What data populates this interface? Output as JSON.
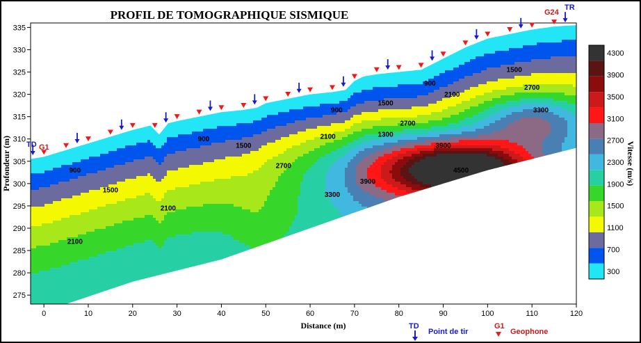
{
  "chart_data": {
    "type": "heatmap",
    "title": "PROFIL DE TOMOGRAPHIQUE SISMIQUE",
    "xlabel": "Distance (m)",
    "ylabel": "Profondeur (m)",
    "colorbar_label": "Vitesse (m/s)",
    "xlim": [
      -3,
      120
    ],
    "ylim": [
      273,
      336
    ],
    "xticks": [
      0,
      10,
      20,
      30,
      40,
      50,
      60,
      70,
      80,
      90,
      100,
      110,
      120
    ],
    "yticks": [
      275,
      280,
      285,
      290,
      295,
      300,
      305,
      310,
      315,
      320,
      325,
      330,
      335
    ],
    "colorbar_levels": [
      300,
      700,
      1100,
      1500,
      1900,
      2300,
      2700,
      3100,
      3500,
      3900,
      4300
    ],
    "colorbar_colors": [
      "#22e6f5",
      "#0055ee",
      "#6b6ba0",
      "#f4f800",
      "#a8e81a",
      "#36d62a",
      "#26d0a4",
      "#40b8e0",
      "#4a7fb4",
      "#8c6a86",
      "#ff1616",
      "#cc1a1a",
      "#8a0c0c",
      "#5a1414",
      "#333333"
    ],
    "contour_labels": [
      {
        "text": "900",
        "x": 7,
        "y": 302.5
      },
      {
        "text": "1500",
        "x": 15,
        "y": 298
      },
      {
        "text": "2100",
        "x": 28,
        "y": 294
      },
      {
        "text": "2100",
        "x": 7,
        "y": 286.5
      },
      {
        "text": "900",
        "x": 36,
        "y": 309.5
      },
      {
        "text": "1500",
        "x": 45,
        "y": 308
      },
      {
        "text": "2700",
        "x": 54,
        "y": 303.5
      },
      {
        "text": "2100",
        "x": 64,
        "y": 310
      },
      {
        "text": "900",
        "x": 66,
        "y": 316
      },
      {
        "text": "1500",
        "x": 77,
        "y": 317.5
      },
      {
        "text": "2700",
        "x": 82,
        "y": 313
      },
      {
        "text": "1300",
        "x": 77,
        "y": 310.5
      },
      {
        "text": "3900",
        "x": 90,
        "y": 308
      },
      {
        "text": "3900",
        "x": 73,
        "y": 300
      },
      {
        "text": "3300",
        "x": 65,
        "y": 297
      },
      {
        "text": "4500",
        "x": 94,
        "y": 302.5
      },
      {
        "text": "900",
        "x": 87,
        "y": 322
      },
      {
        "text": "2100",
        "x": 92,
        "y": 319.5
      },
      {
        "text": "1500",
        "x": 106,
        "y": 325
      },
      {
        "text": "2700",
        "x": 110,
        "y": 321
      },
      {
        "text": "3300",
        "x": 112,
        "y": 316
      }
    ],
    "shot_points_x": [
      -2.5,
      7.5,
      17.5,
      27.5,
      37.5,
      47.5,
      57.5,
      67.5,
      77.5,
      87.5,
      97.5,
      107.5,
      117.5
    ],
    "geophones_x": [
      0,
      5,
      10,
      15,
      20,
      25,
      30,
      35,
      40,
      45,
      50,
      55,
      60,
      65,
      70,
      75,
      80,
      85,
      90,
      95,
      100,
      105,
      110,
      115
    ],
    "surface": [
      [
        -3,
        305.5
      ],
      [
        0,
        306
      ],
      [
        5,
        307.5
      ],
      [
        10,
        309
      ],
      [
        15,
        310.5
      ],
      [
        20,
        312
      ],
      [
        24,
        313
      ],
      [
        26,
        311
      ],
      [
        28,
        313.5
      ],
      [
        30,
        314
      ],
      [
        35,
        315
      ],
      [
        40,
        316
      ],
      [
        45,
        316.5
      ],
      [
        48,
        317
      ],
      [
        50,
        318
      ],
      [
        55,
        319
      ],
      [
        60,
        320
      ],
      [
        65,
        320.5
      ],
      [
        68,
        321
      ],
      [
        70,
        323
      ],
      [
        72,
        324
      ],
      [
        75,
        324.5
      ],
      [
        80,
        325
      ],
      [
        85,
        325.5
      ],
      [
        90,
        328
      ],
      [
        95,
        330.5
      ],
      [
        100,
        332.5
      ],
      [
        105,
        333.5
      ],
      [
        110,
        334.5
      ],
      [
        115,
        335.2
      ],
      [
        120,
        335.5
      ]
    ],
    "bottom": [
      [
        -3,
        273
      ],
      [
        5,
        273
      ],
      [
        20,
        278
      ],
      [
        40,
        283
      ],
      [
        60,
        290
      ],
      [
        80,
        297
      ],
      [
        100,
        303
      ],
      [
        120,
        308
      ]
    ]
  },
  "legend": {
    "shot_label": "TD",
    "shot_text": "Point de tir",
    "geophone_label": "G1",
    "geophone_text": "Geophone"
  },
  "annotations": {
    "td_left": "TD",
    "g1_left": "G1",
    "g24_right": "G24",
    "tr_right": "TR"
  }
}
